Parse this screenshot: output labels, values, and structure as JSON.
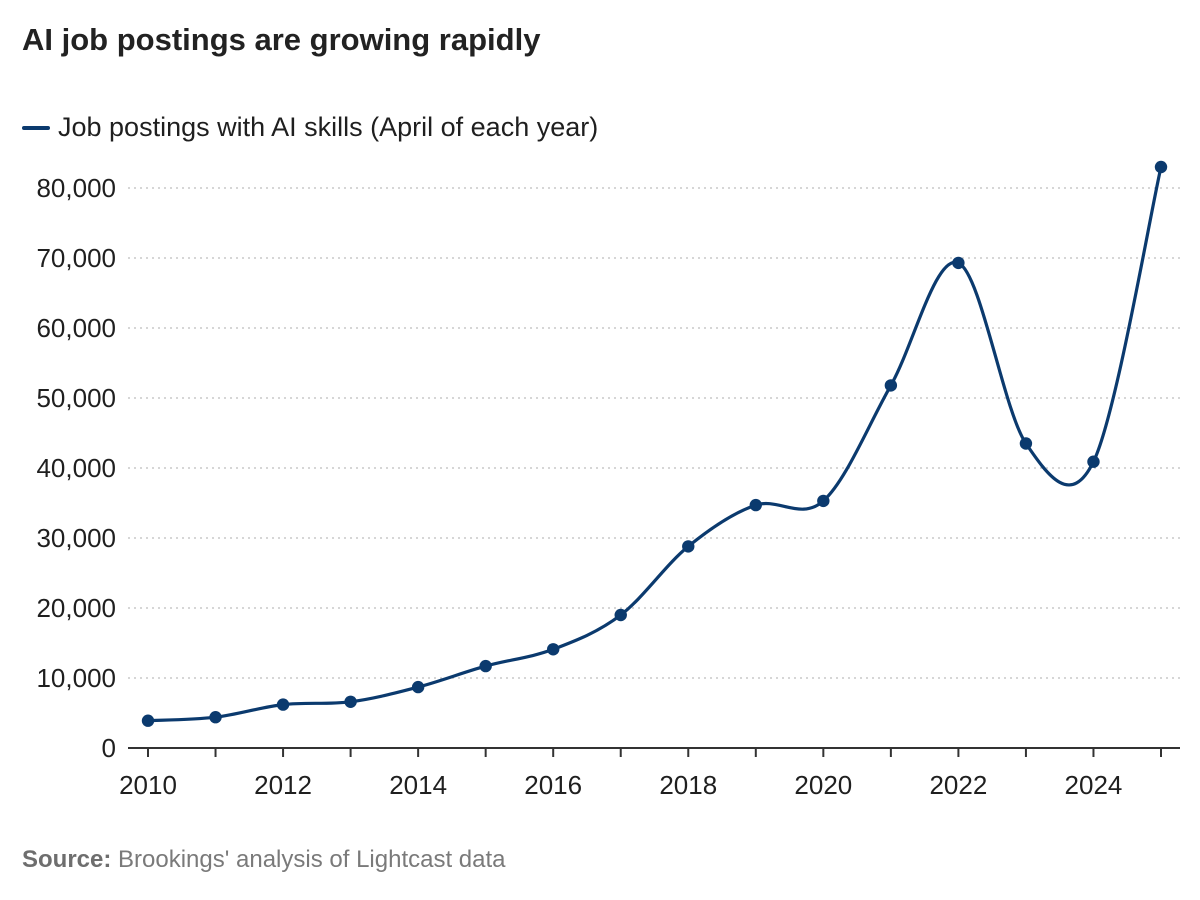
{
  "colors": {
    "series": "#0b3a6e",
    "grid": "#c8c8c8",
    "axis": "#333333"
  },
  "chart_data": {
    "type": "line",
    "title": "AI job postings are growing rapidly",
    "xlabel": "",
    "ylabel": "",
    "x": [
      2010,
      2011,
      2012,
      2013,
      2014,
      2015,
      2016,
      2017,
      2018,
      2019,
      2020,
      2021,
      2022,
      2023,
      2024,
      2025
    ],
    "series": [
      {
        "name": "Job postings with AI skills (April of each year)",
        "values": [
          3900,
          4400,
          6200,
          6600,
          8700,
          11700,
          14100,
          19000,
          28800,
          34700,
          35300,
          51800,
          69300,
          43500,
          40900,
          83000
        ]
      }
    ],
    "xlim": [
      2010,
      2025
    ],
    "ylim": [
      0,
      85000
    ],
    "x_ticks": [
      "2010",
      "2012",
      "2014",
      "2016",
      "2018",
      "2020",
      "2022",
      "2024"
    ],
    "y_ticks": [
      "0",
      "10,000",
      "20,000",
      "30,000",
      "40,000",
      "50,000",
      "60,000",
      "70,000",
      "80,000"
    ],
    "grid": "horizontal dotted",
    "legend": "top-left",
    "source_label": "Source:",
    "source_text": "Brookings' analysis of Lightcast data"
  }
}
